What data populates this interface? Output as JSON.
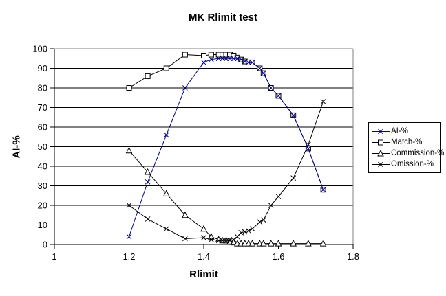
{
  "chart_data": {
    "type": "line",
    "title": "MK Rlimit test",
    "xlabel": "Rlimit",
    "ylabel": "AI-%",
    "xlim": [
      1,
      1.8
    ],
    "xtick_step": 0.2,
    "ylim": [
      0,
      100
    ],
    "ytick_step": 10,
    "grid": "horizontal-black-gridlines",
    "plot_border_color": "#808080",
    "axis_color": "#000000",
    "background": "#ffffff",
    "legend_position": "right",
    "x": [
      1.2,
      1.25,
      1.3,
      1.35,
      1.4,
      1.42,
      1.44,
      1.45,
      1.46,
      1.47,
      1.48,
      1.49,
      1.5,
      1.51,
      1.52,
      1.53,
      1.55,
      1.56,
      1.58,
      1.6,
      1.64,
      1.68,
      1.72
    ],
    "series": [
      {
        "name": "AI-%",
        "color": "#000080",
        "marker": "x",
        "values": [
          4,
          32,
          56,
          80,
          93,
          94.5,
          95,
          95,
          95,
          95,
          95,
          95,
          94.5,
          93.5,
          93,
          93,
          90,
          87.5,
          80,
          76,
          66,
          49,
          28
        ]
      },
      {
        "name": "Match-%",
        "color": "#000000",
        "marker": "square",
        "values": [
          80,
          86,
          90,
          97,
          96.5,
          97,
          97,
          97,
          97,
          97,
          96.5,
          95.5,
          94.5,
          93.5,
          93,
          93,
          90,
          87.5,
          80,
          76,
          66,
          49,
          28
        ]
      },
      {
        "name": "Commission-%",
        "color": "#000000",
        "marker": "triangle",
        "values": [
          48,
          37,
          26,
          15,
          8,
          4,
          2.5,
          2,
          2,
          1.5,
          1,
          0.5,
          0.5,
          0.5,
          0.5,
          0.5,
          0.5,
          0.5,
          0.5,
          0.5,
          0.5,
          0.5,
          0.5
        ]
      },
      {
        "name": "Omission-%",
        "color": "#000000",
        "marker": "x",
        "values": [
          20,
          13,
          8,
          3,
          3.5,
          2.5,
          2,
          2,
          2,
          2,
          2.5,
          4,
          6,
          6.5,
          7,
          8,
          11.5,
          12.5,
          20,
          24.5,
          34,
          51,
          73
        ]
      }
    ]
  }
}
